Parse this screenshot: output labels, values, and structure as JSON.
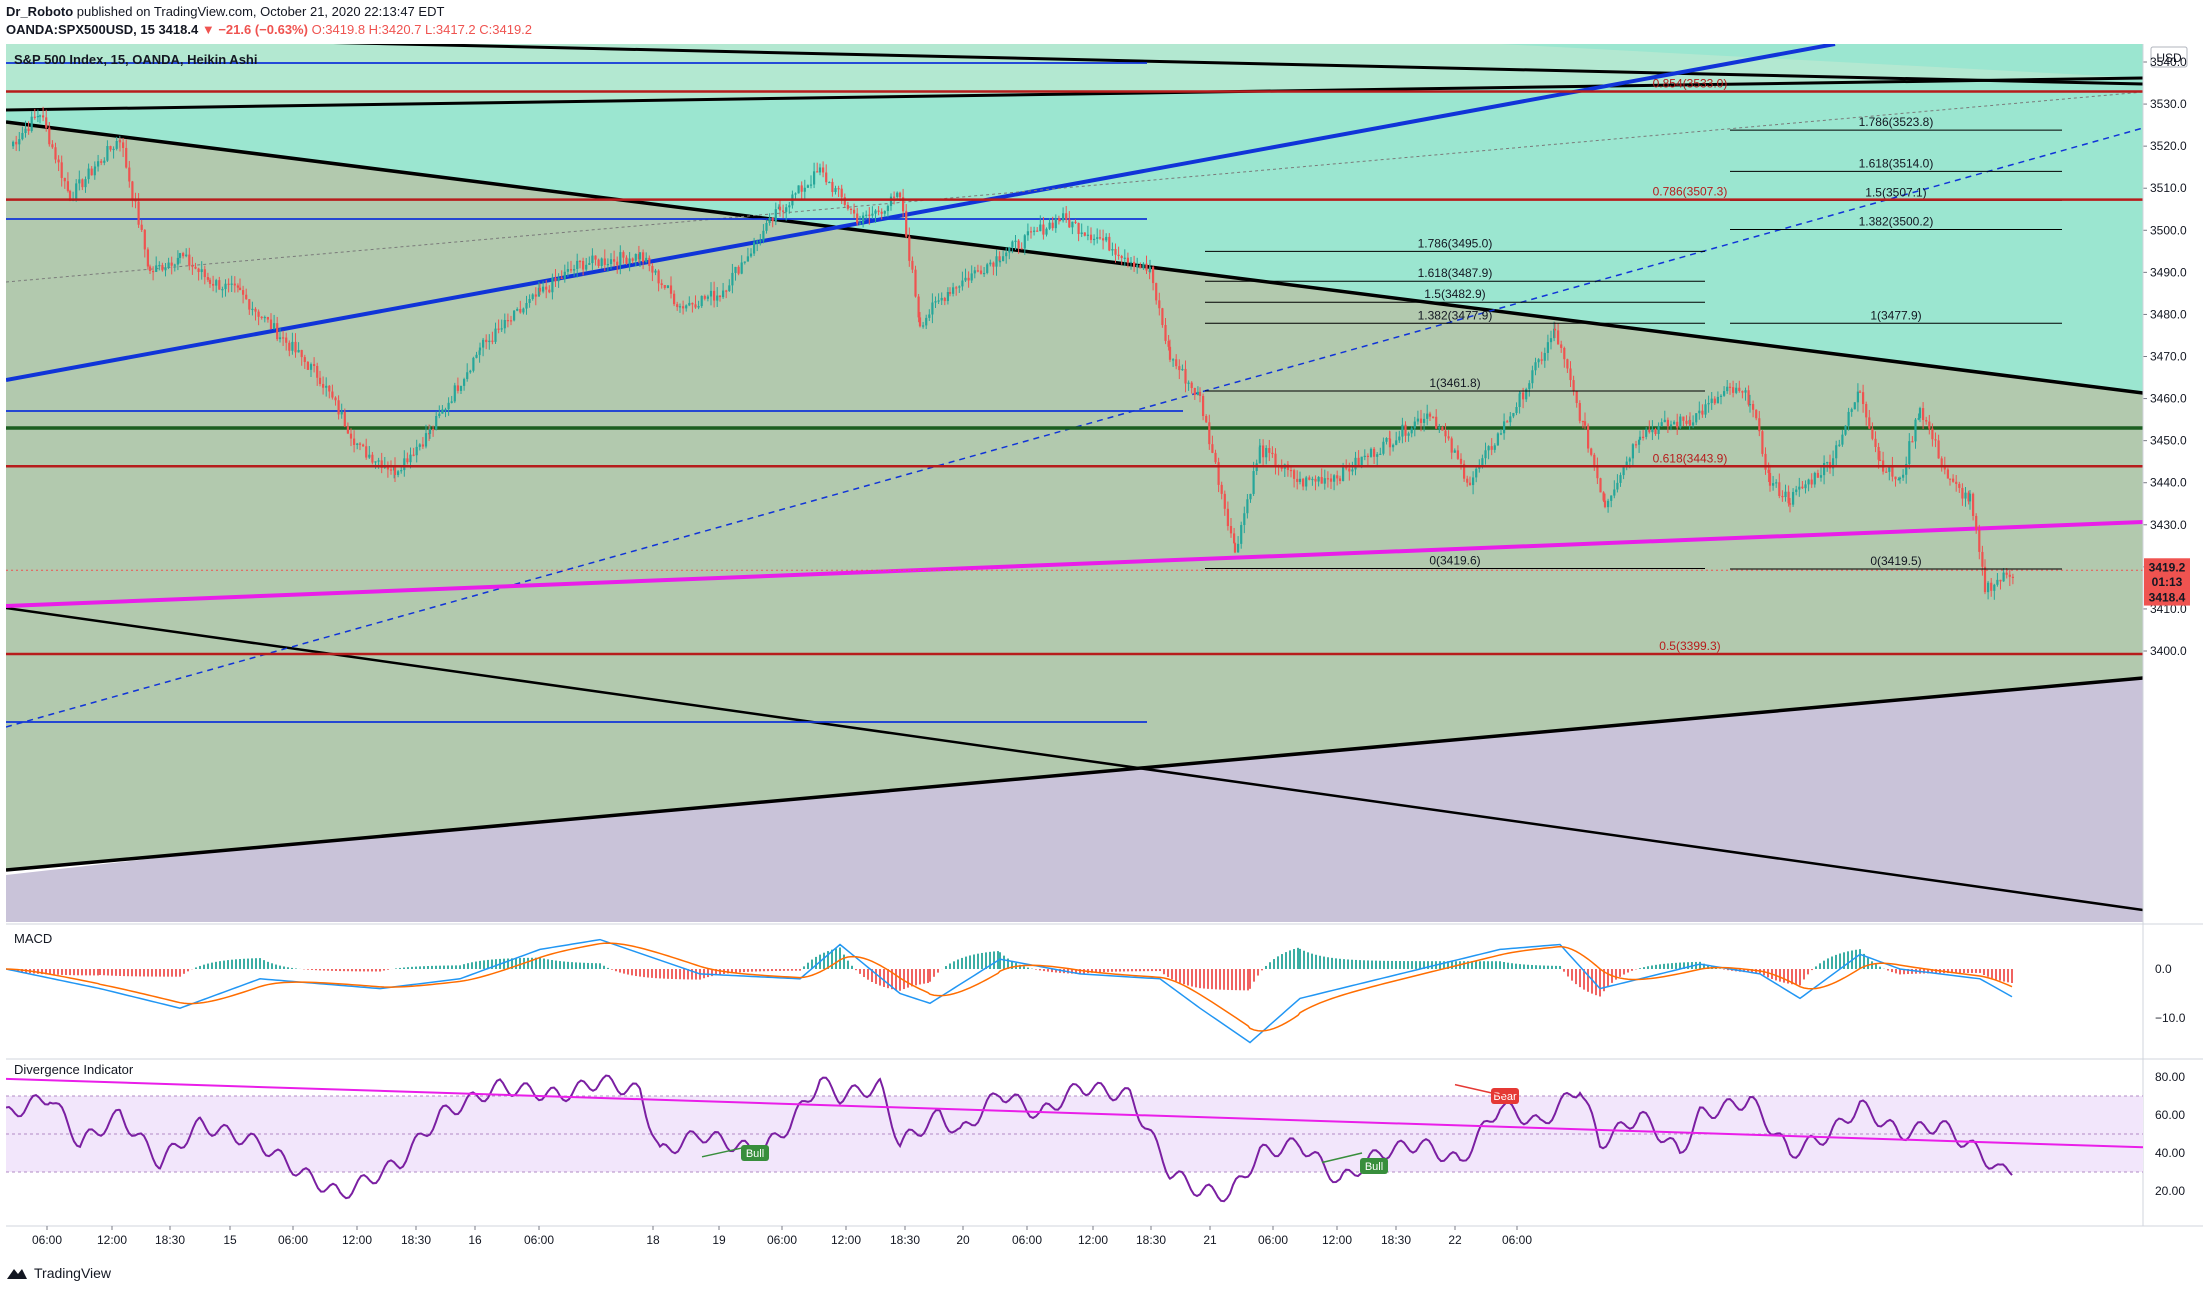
{
  "header": {
    "line1_user": "Dr_Roboto",
    "line1_rest": "published on TradingView.com, October 21, 2020 22:13:47 EDT",
    "symbol": "OANDA:SPX500USD, 15",
    "last": "3418.4",
    "change": "▼ −21.6 (−0.63%)",
    "ohlc": "O:3419.8 H:3420.7 L:3417.2 C:3419.2"
  },
  "chart_title": "S&P 500 Index, 15, OANDA, Heikin Ashi",
  "price_axis": {
    "currency": "USD",
    "ticks": [
      "3540.0",
      "3530.0",
      "3520.0",
      "3510.0",
      "3500.0",
      "3490.0",
      "3480.0",
      "3470.0",
      "3460.0",
      "3450.0",
      "3440.0",
      "3430.0",
      "3420.0",
      "3410.0",
      "3400.0"
    ],
    "tick_values": [
      3540,
      3530,
      3520,
      3510,
      3500,
      3490,
      3480,
      3470,
      3460,
      3450,
      3440,
      3430,
      3420,
      3410,
      3400
    ],
    "last_label_top": "3419.2",
    "countdown": "01:13",
    "last_label_bottom": "3418.4"
  },
  "time_axis": {
    "labels": [
      "06:00",
      "12:00",
      "18:30",
      "15",
      "06:00",
      "12:00",
      "18:30",
      "16",
      "06:00",
      "18",
      "19",
      "06:00",
      "12:00",
      "18:30",
      "20",
      "06:00",
      "12:00",
      "18:30",
      "21",
      "06:00",
      "12:00",
      "18:30",
      "22",
      "06:00"
    ],
    "x": [
      47,
      112,
      170,
      230,
      293,
      357,
      416,
      475,
      539,
      653,
      719,
      782,
      846,
      905,
      963,
      1027,
      1093,
      1151,
      1210,
      1273,
      1337,
      1396,
      1455,
      1517
    ]
  },
  "fib_labels": {
    "left": [
      {
        "text": "1.786(3495.0)",
        "price": 3495.0
      },
      {
        "text": "1.618(3487.9)",
        "price": 3487.9
      },
      {
        "text": "1.5(3482.9)",
        "price": 3482.9
      },
      {
        "text": "1.382(3477.9)",
        "price": 3477.9
      },
      {
        "text": "1(3461.8)",
        "price": 3461.8
      },
      {
        "text": "0(3419.6)",
        "price": 3419.6
      }
    ],
    "right": [
      {
        "text": "1.786(3523.8)",
        "price": 3523.8
      },
      {
        "text": "1.618(3514.0)",
        "price": 3514.0
      },
      {
        "text": "1.5(3507.1)",
        "price": 3507.1
      },
      {
        "text": "1.382(3500.2)",
        "price": 3500.2
      },
      {
        "text": "1(3477.9)",
        "price": 3477.9
      },
      {
        "text": "0(3419.5)",
        "price": 3419.5
      }
    ],
    "red": [
      {
        "text": "0.854(3533.0)",
        "price": 3533.0
      },
      {
        "text": "0.786(3507.3)",
        "price": 3507.3
      },
      {
        "text": "0.618(3443.9)",
        "price": 3443.9
      },
      {
        "text": "0.5(3399.3)",
        "price": 3399.3
      }
    ]
  },
  "macd": {
    "title": "MACD",
    "ticks": [
      "0.0",
      "−10.0"
    ],
    "tick_values": [
      0,
      -10
    ]
  },
  "divergence": {
    "title": "Divergence Indicator",
    "ticks": [
      "80.00",
      "60.00",
      "40.00",
      "20.00"
    ],
    "tick_values": [
      80,
      60,
      40,
      20
    ],
    "labels": [
      {
        "text": "Bull",
        "kind": "bull"
      },
      {
        "text": "Bull",
        "kind": "bull"
      },
      {
        "text": "Bear",
        "kind": "bear"
      }
    ]
  },
  "colors": {
    "up": "#26a69a",
    "down": "#ef5350",
    "teal_zone": "#9be6d0",
    "green_zone": "#b2c9ae",
    "lavender_zone": "#c9c3d9",
    "blue_line": "#1034d8",
    "magenta_line": "#e91ee9",
    "red_line": "#b71c1c",
    "dark_green_line": "#1b5e20",
    "osc_purple": "#7b1fa2"
  },
  "chart_data": {
    "type": "candlestick",
    "style": "Heikin Ashi",
    "symbol": "OANDA:SPX500USD",
    "interval": "15",
    "ylim": [
      3398,
      3545
    ],
    "close_path": [
      {
        "x": "Oct 14 00:00",
        "y": 3520
      },
      {
        "x": "Oct 14 03:00",
        "y": 3528
      },
      {
        "x": "Oct 14 06:00",
        "y": 3508
      },
      {
        "x": "Oct 14 09:00",
        "y": 3515
      },
      {
        "x": "Oct 14 11:00",
        "y": 3522
      },
      {
        "x": "Oct 14 13:00",
        "y": 3490
      },
      {
        "x": "Oct 14 16:00",
        "y": 3494
      },
      {
        "x": "Oct 14 18:30",
        "y": 3488
      },
      {
        "x": "Oct 14 22:00",
        "y": 3485
      },
      {
        "x": "Oct 15 02:00",
        "y": 3475
      },
      {
        "x": "Oct 15 05:00",
        "y": 3465
      },
      {
        "x": "Oct 15 07:00",
        "y": 3448
      },
      {
        "x": "Oct 15 10:00",
        "y": 3443
      },
      {
        "x": "Oct 15 12:00",
        "y": 3452
      },
      {
        "x": "Oct 15 15:00",
        "y": 3472
      },
      {
        "x": "Oct 15 18:30",
        "y": 3485
      },
      {
        "x": "Oct 15 21:00",
        "y": 3492
      },
      {
        "x": "Oct 16 01:00",
        "y": 3494
      },
      {
        "x": "Oct 16 03:00",
        "y": 3482
      },
      {
        "x": "Oct 16 06:00",
        "y": 3485
      },
      {
        "x": "Oct 16 09:00",
        "y": 3505
      },
      {
        "x": "Oct 16 11:00",
        "y": 3514
      },
      {
        "x": "Oct 16 13:00",
        "y": 3502
      },
      {
        "x": "Oct 16 16:00",
        "y": 3508
      },
      {
        "x": "Oct 16 17:00",
        "y": 3478
      },
      {
        "x": "Oct 18 22:00",
        "y": 3486
      },
      {
        "x": "Oct 19 02:00",
        "y": 3494
      },
      {
        "x": "Oct 19 05:00",
        "y": 3503
      },
      {
        "x": "Oct 19 09:00",
        "y": 3498
      },
      {
        "x": "Oct 19 11:00",
        "y": 3490
      },
      {
        "x": "Oct 19 12:30",
        "y": 3470
      },
      {
        "x": "Oct 19 14:00",
        "y": 3460
      },
      {
        "x": "Oct 19 16:00",
        "y": 3424
      },
      {
        "x": "Oct 19 18:00",
        "y": 3448
      },
      {
        "x": "Oct 19 22:00",
        "y": 3440
      },
      {
        "x": "Oct 20 02:00",
        "y": 3442
      },
      {
        "x": "Oct 20 05:00",
        "y": 3450
      },
      {
        "x": "Oct 20 07:00",
        "y": 3457
      },
      {
        "x": "Oct 20 09:00",
        "y": 3440
      },
      {
        "x": "Oct 20 11:00",
        "y": 3460
      },
      {
        "x": "Oct 20 12:00",
        "y": 3476
      },
      {
        "x": "Oct 20 13:30",
        "y": 3452
      },
      {
        "x": "Oct 20 15:00",
        "y": 3435
      },
      {
        "x": "Oct 20 17:00",
        "y": 3452
      },
      {
        "x": "Oct 20 20:00",
        "y": 3455
      },
      {
        "x": "Oct 20 23:00",
        "y": 3462
      },
      {
        "x": "Oct 21 01:00",
        "y": 3460
      },
      {
        "x": "Oct 21 03:00",
        "y": 3440
      },
      {
        "x": "Oct 21 05:00",
        "y": 3436
      },
      {
        "x": "Oct 21 08:00",
        "y": 3445
      },
      {
        "x": "Oct 21 10:00",
        "y": 3462
      },
      {
        "x": "Oct 21 12:00",
        "y": 3445
      },
      {
        "x": "Oct 21 14:00",
        "y": 3440
      },
      {
        "x": "Oct 21 16:00",
        "y": 3458
      },
      {
        "x": "Oct 21 18:00",
        "y": 3440
      },
      {
        "x": "Oct 21 20:00",
        "y": 3436
      },
      {
        "x": "Oct 21 21:00",
        "y": 3415
      },
      {
        "x": "Oct 21 22:00",
        "y": 3419.2
      }
    ],
    "last_close": 3419.2,
    "horizontal_levels": [
      3533.0,
      3507.3,
      3443.9,
      3399.3,
      3453
    ]
  }
}
